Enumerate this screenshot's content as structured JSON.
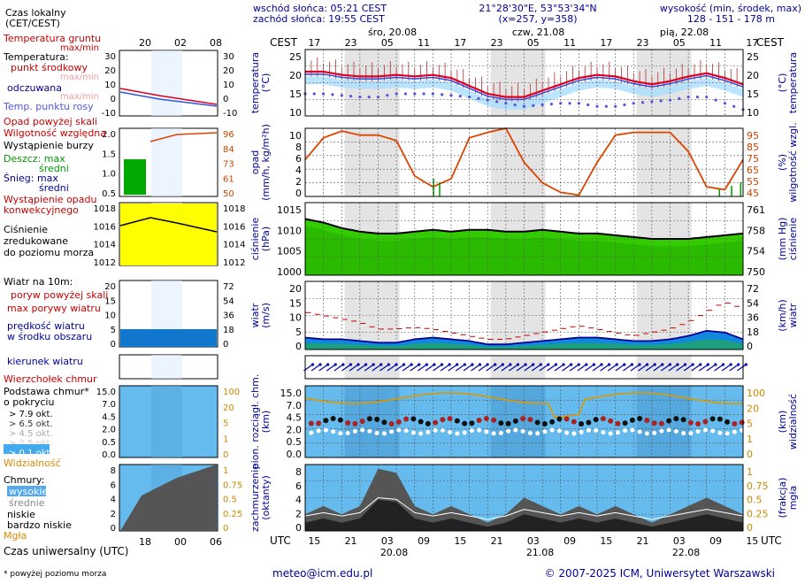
{
  "header": {
    "sunrise": "wschód słońca: 05:21 CEST",
    "sunset": "zachód słońca: 19:55 CEST",
    "coords": "21°28'30\"E, 53°53'34\"N",
    "grid": "(x=257,  y=358)",
    "height_title": "wysokość (min, środek, max)",
    "height_values": "128 - 151 - 178 m",
    "cest": "CEST",
    "utc": "UTC",
    "days_top": [
      "śro, 20.08",
      "czw, 21.08",
      "pią, 22.08"
    ],
    "days_bottom": [
      "20.08",
      "21.08",
      "22.08"
    ],
    "hours_cest": [
      "17",
      "23",
      "05",
      "11",
      "17",
      "23",
      "05",
      "11",
      "17",
      "23",
      "05",
      "11",
      "17"
    ],
    "hours_utc": [
      "15",
      "21",
      "03",
      "09",
      "15",
      "21",
      "03",
      "09",
      "15",
      "21",
      "03",
      "09",
      "15"
    ]
  },
  "legend": {
    "local_time": "Czas lokalny\n(CET/CEST)",
    "local_ticks": [
      "20",
      "02",
      "08"
    ],
    "temp_ground": "Temperatura gruntu",
    "temp_ground_sub": "max/min",
    "temperature": "Temperatura:",
    "midpoint": "punkt środkowy",
    "mm1": "max/min",
    "perceived": "odczuwana",
    "mm2": "max/min",
    "dew": "Temp. punktu rosy",
    "precip_above": "Opad powyżej skali",
    "humidity": "Wilgotność względna",
    "storm": "Wystąpienie burzy",
    "rain_max": "Deszcz: max",
    "rain_mid": "średni",
    "snow_max": "Śnieg:    max",
    "snow_mid": "średni",
    "conv": "Wystąpienie opadu\nkonwekcyjnego",
    "pressure": "Ciśnienie\nzredukowane\ndo poziomu morza",
    "wind10": "Wiatr na 10m:",
    "gust_above": "poryw powyżej skali",
    "gust_max": "max porywy wiatru",
    "wind_mean": "prędkość wiatru\nw środku obszaru",
    "wind_dir": "kierunek wiatru",
    "cloud_top": "Wierzchołek chmur",
    "cloud_base": "Podstawa chmur*\no pokryciu",
    "okt": [
      "> 7.9 okt.",
      "> 6.5 okt.",
      "> 4.5 okt.",
      "> 2.5 okt.",
      "> 0.1 okt."
    ],
    "visibility": "Widzialność",
    "clouds": "Chmury:",
    "high": "wysokie",
    "mid": "średnie",
    "low": "niskie",
    "vlow": "bardzo niskie",
    "fog": "Mgła",
    "utc_time": "Czas uniwersalny (UTC)",
    "utc_ticks": [
      "18",
      "00",
      "06"
    ],
    "footnote": "* powyżej poziomu morza"
  },
  "axes": {
    "temp": {
      "left": "temperatura\n(°C)",
      "right": "(°C)\ntemperatura",
      "ticks": [
        "25",
        "20",
        "15",
        "10"
      ]
    },
    "precip": {
      "left": "opad\n(mm/h, kg/m²h)",
      "right": "(%)\nwilgotność wzgl.",
      "ticks_l": [
        "10",
        "8",
        "6",
        "4",
        "2",
        "0"
      ],
      "ticks_r": [
        "95",
        "85",
        "75",
        "65",
        "55",
        "45"
      ]
    },
    "press": {
      "left": "ciśnienie\n(hPa)",
      "right": "(mm Hg)\nciśnienie",
      "ticks_l": [
        "1015",
        "1010",
        "1005",
        "1000"
      ],
      "ticks_r": [
        "761",
        "758",
        "754",
        "750"
      ]
    },
    "wind": {
      "left": "wiatr\n(m/s)",
      "right": "(km/h)\nwiatr",
      "ticks_l": [
        "20",
        "15",
        "10",
        "5",
        "0"
      ],
      "ticks_r": [
        "72",
        "54",
        "36",
        "18",
        "0"
      ]
    },
    "cloud": {
      "left": "pion. rozciągł. chm.\n(km)",
      "right": "(km)\nwidzialność",
      "ticks_l": [
        "15.0",
        "7.0",
        "4.5",
        "2.0",
        "0.5",
        "0.0"
      ],
      "ticks_r": [
        "100",
        "20",
        "5",
        "1",
        "0"
      ]
    },
    "cover": {
      "left": "zachmurzenie\n(oktanty)",
      "right": "(frakcja)\nmgła",
      "ticks_l": [
        "8",
        "6",
        "4",
        "2",
        "0"
      ],
      "ticks_r": [
        "1",
        "0.75",
        "0.5",
        "0.25",
        "0"
      ]
    },
    "small": {
      "temp_l": [
        "30",
        "20",
        "10",
        "0",
        "-10"
      ],
      "temp_r": [
        "30",
        "20",
        "10",
        "0",
        "-10"
      ],
      "precip_l": [
        "2.0",
        "1.5",
        "1.0",
        "0.5"
      ],
      "precip_r": [
        "96",
        "84",
        "73",
        "61",
        "50"
      ],
      "press_l": [
        "1018",
        "1016",
        "1014",
        "1012"
      ],
      "press_r": [
        "1018",
        "1016",
        "1014",
        "1012"
      ],
      "wind_l": [
        "20",
        "15",
        "10",
        "5",
        "0"
      ],
      "wind_r": [
        "72",
        "54",
        "36",
        "18",
        "0"
      ],
      "cloud_l": [
        "15.0",
        "7.0",
        "4.5",
        "2.0",
        "0.5",
        "0.0"
      ],
      "cloud_r": [
        "100",
        "20",
        "5",
        "1",
        "0"
      ],
      "cover_l": [
        "8",
        "6",
        "4",
        "2",
        "0"
      ],
      "cover_r": [
        "1",
        "0.75",
        "0.5",
        "0.25",
        "0"
      ]
    }
  },
  "footer": {
    "email": "meteo@icm.edu.pl",
    "copyright": "© 2007-2025 ICM, Uniwersytet Warszawski"
  },
  "colors": {
    "temp": "#dd0022",
    "dew": "#3333cc",
    "hum": "#dd4400",
    "press_fill": "#33cc00",
    "wind_fill": "#1188dd",
    "sky": "#66bbee",
    "axis_blue": "#000099"
  },
  "chart_data": {
    "type": "line",
    "x_hours_utc_from_start": [
      0,
      3,
      6,
      9,
      12,
      15,
      18,
      21,
      24,
      27,
      30,
      33,
      36,
      39,
      42,
      45,
      48,
      51,
      54,
      57,
      60,
      63,
      66,
      69,
      72
    ],
    "series": [
      {
        "name": "temperatura",
        "unit": "°C",
        "values": [
          20,
          20,
          19,
          18.5,
          18.5,
          19,
          18.5,
          19,
          18,
          15.5,
          13,
          12,
          12,
          14,
          16,
          18,
          19,
          18.5,
          17,
          16,
          17,
          18.5,
          19.5,
          18,
          16
        ]
      },
      {
        "name": "temp. punktu rosy",
        "unit": "°C",
        "values": [
          15,
          15,
          14.5,
          14,
          14,
          15,
          15,
          15,
          14.5,
          14,
          13,
          12,
          11,
          11.5,
          12,
          12,
          11,
          11,
          12,
          12.5,
          13,
          14,
          14,
          12,
          10
        ]
      },
      {
        "name": "wilgotność wzgl.",
        "unit": "%",
        "values": [
          72,
          88,
          93,
          90,
          90,
          86,
          60,
          52,
          58,
          88,
          92,
          95,
          70,
          55,
          48,
          46,
          70,
          90,
          92,
          92,
          92,
          78,
          52,
          50,
          72
        ]
      },
      {
        "name": "ciśnienie",
        "unit": "hPa",
        "values": [
          1011.5,
          1010.5,
          1009,
          1008,
          1007.5,
          1007.5,
          1008,
          1008.5,
          1008,
          1008.5,
          1008.5,
          1008,
          1008,
          1008.5,
          1008,
          1007.5,
          1007.5,
          1007,
          1006.5,
          1006,
          1006,
          1006,
          1006.5,
          1007,
          1007.5
        ]
      },
      {
        "name": "max porywy wiatru",
        "unit": "m/s",
        "values": [
          11,
          10,
          9,
          8,
          6,
          6,
          6.5,
          6,
          5,
          4,
          3,
          3,
          4,
          5,
          6,
          7,
          6,
          5,
          4,
          5,
          6,
          8,
          11,
          14,
          12
        ]
      },
      {
        "name": "prędkość wiatru",
        "unit": "m/s",
        "values": [
          3.5,
          3,
          3,
          2.5,
          2,
          2,
          3,
          3.5,
          3,
          2.5,
          1.5,
          1.5,
          2,
          2.5,
          3,
          3.5,
          3.5,
          3,
          2.5,
          2.5,
          3,
          4,
          5.5,
          5,
          3
        ]
      }
    ],
    "ylim_temp": [
      6,
      27
    ],
    "ylim_press": [
      996,
      1016
    ]
  }
}
